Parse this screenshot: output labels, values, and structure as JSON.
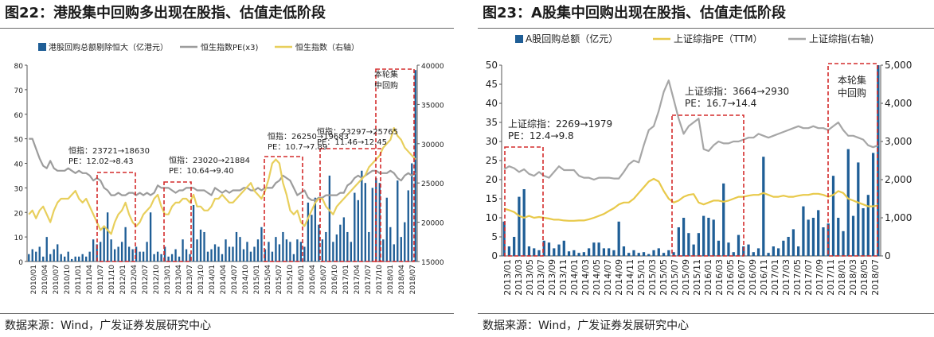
{
  "left": {
    "title": "图22：港股集中回购多出现在股指、估值走低阶段",
    "source": "数据来源：Wind，广发证券发展研究中心",
    "legend": [
      "港股回购总额剔除恒大（亿港元）",
      "恒生指数PE(x3)",
      "恒生指数（右轴）"
    ],
    "corner_note": [
      "本轮集",
      "中回购"
    ],
    "annotations": [
      {
        "line1": "恒指：23721→18630",
        "line2": "PE：12.02→8.43"
      },
      {
        "line1": "恒指：23020→21884",
        "line2": "PE：10.64→9.40"
      },
      {
        "line1": "恒指：26250→19683",
        "line2": "PE：10.7→7.89"
      },
      {
        "line1": "恒指：23297→25765",
        "line2": "PE：11.46→12.45"
      }
    ]
  },
  "right": {
    "title": "图23：A股集中回购出现在股指、估值走低阶段",
    "source": "数据来源：Wind，广发证券发展研究中心",
    "legend": [
      "A股回购总额（亿元）",
      "上证综指PE（TTM）",
      "上证综指(右轴)"
    ],
    "corner_note": [
      "本轮集",
      "中回购"
    ],
    "annotations": [
      {
        "line1": "上证综指：2269→1979",
        "line2": "PE：12.4→9.8"
      },
      {
        "line1": "上证综指：3664→2930",
        "line2": "PE：16.7→14.4"
      }
    ]
  },
  "chart_data": [
    {
      "type": "bar+line",
      "title": "图22：港股集中回购多出现在股指、估值走低阶段",
      "x_ticks": [
        "2010/01",
        "2010/04",
        "2010/07",
        "2010/10",
        "2011/01",
        "2011/04",
        "2011/07",
        "2011/10",
        "2012/01",
        "2012/04",
        "2012/07",
        "2012/10",
        "2013/01",
        "2013/04",
        "2013/07",
        "2013/10",
        "2014/01",
        "2014/04",
        "2014/07",
        "2014/10",
        "2015/01",
        "2015/04",
        "2015/07",
        "2015/10",
        "2016/01",
        "2016/04",
        "2016/07",
        "2016/10",
        "2017/01",
        "2017/04",
        "2017/07",
        "2017/10",
        "2018/01",
        "2018/04",
        "2018/07"
      ],
      "ylim_left": [
        0,
        80
      ],
      "yticks_left": [
        0,
        10,
        20,
        30,
        40,
        50,
        60,
        70,
        80
      ],
      "ylim_right": [
        15000,
        40000
      ],
      "yticks_right": [
        15000,
        20000,
        25000,
        30000,
        35000,
        40000
      ],
      "series": [
        {
          "name": "港股回购总额剔除恒大（亿港元）",
          "kind": "bar",
          "color": "#1f5e96",
          "axis": "left",
          "values": [
            3,
            5,
            4,
            6,
            2,
            10,
            3,
            5,
            7,
            3,
            2,
            4,
            1,
            2,
            2,
            3,
            2,
            4,
            9,
            7,
            8,
            14,
            20,
            9,
            5,
            6,
            8,
            14,
            6,
            5,
            6,
            4,
            4,
            8,
            20,
            3,
            4,
            3,
            6,
            2,
            3,
            5,
            2,
            9,
            5,
            3,
            23,
            9,
            13,
            12,
            4,
            5,
            7,
            6,
            3,
            9,
            6,
            6,
            12,
            10,
            5,
            8,
            4,
            6,
            9,
            14,
            5,
            8,
            4,
            10,
            7,
            12,
            9,
            8,
            3,
            9,
            8,
            6,
            24,
            19,
            26,
            15,
            9,
            12,
            35,
            8,
            11,
            15,
            18,
            12,
            8,
            28,
            25,
            37,
            32,
            12,
            30,
            34,
            32,
            9,
            26,
            14,
            7,
            33,
            10,
            16,
            29,
            40,
            78
          ]
        },
        {
          "name": "恒生指数PE(x3)",
          "kind": "line",
          "color": "#9c9c9c",
          "axis": "left",
          "values": [
            50,
            50,
            46,
            42,
            39,
            38,
            41,
            38,
            37,
            37,
            37,
            38,
            37,
            36,
            37,
            36,
            36,
            35,
            33,
            34,
            33,
            30,
            29,
            27,
            27,
            28,
            27,
            27,
            28,
            28,
            27,
            28,
            27,
            28,
            27,
            28,
            31,
            30,
            30,
            30,
            29,
            28,
            29,
            29,
            30,
            30,
            30,
            29,
            29,
            29,
            28,
            27,
            30,
            29,
            28,
            29,
            28,
            29,
            29,
            29,
            30,
            30,
            29,
            29,
            30,
            29,
            30,
            30,
            30,
            32,
            33,
            35,
            34,
            33,
            30,
            27,
            28,
            29,
            26,
            25,
            25,
            26,
            26,
            27,
            27,
            27,
            27,
            28,
            28,
            31,
            32,
            34,
            35,
            34,
            35,
            36,
            37,
            37,
            36,
            36,
            36,
            37,
            36,
            34,
            33,
            35,
            36,
            35,
            36
          ]
        },
        {
          "name": "恒生指数（右轴）",
          "kind": "line",
          "color": "#e8cf5c",
          "axis": "right",
          "values": [
            21000,
            21500,
            20500,
            21500,
            22000,
            21000,
            20000,
            21500,
            22500,
            23000,
            23000,
            23000,
            23500,
            24000,
            23000,
            22500,
            23000,
            22000,
            21000,
            20000,
            19000,
            19500,
            19000,
            18500,
            20000,
            21000,
            21500,
            22500,
            21000,
            20000,
            19500,
            20000,
            21000,
            21500,
            22000,
            23000,
            23500,
            22000,
            21000,
            21000,
            22000,
            22500,
            22500,
            23000,
            23000,
            22500,
            23500,
            22000,
            22000,
            21500,
            21500,
            22000,
            23000,
            23000,
            23500,
            23000,
            22500,
            22500,
            23000,
            23500,
            24000,
            24500,
            25000,
            24000,
            23500,
            23000,
            24000,
            25500,
            27500,
            28000,
            27500,
            25000,
            23500,
            21500,
            21000,
            21500,
            20000,
            19500,
            20500,
            21500,
            22500,
            23000,
            23000,
            22000,
            21500,
            21000,
            22000,
            22500,
            23000,
            23500,
            24000,
            24500,
            25000,
            25500,
            26000,
            27000,
            27500,
            28000,
            28500,
            29500,
            30000,
            30500,
            32000,
            31000,
            30500,
            29500,
            29000,
            28500,
            28000
          ]
        }
      ],
      "highlight_boxes": [
        [
          "2011/07",
          "2012/04"
        ],
        [
          "2013/01",
          "2013/07"
        ],
        [
          "2015/04",
          "2016/01"
        ],
        [
          "2016/07",
          "2017/10"
        ],
        [
          "2017/10",
          "2018/07"
        ]
      ]
    },
    {
      "type": "bar+line",
      "title": "图23：A股集中回购出现在股指、估值走低阶段",
      "x_ticks": [
        "2013/01",
        "2013/03",
        "2013/05",
        "2013/07",
        "2013/09",
        "2013/11",
        "2014/01",
        "2014/03",
        "2014/05",
        "2014/07",
        "2014/09",
        "2014/11",
        "2015/01",
        "2015/03",
        "2015/05",
        "2015/07",
        "2015/09",
        "2015/11",
        "2016/01",
        "2016/03",
        "2016/05",
        "2016/07",
        "2016/09",
        "2016/11",
        "2017/01",
        "2017/03",
        "2017/05",
        "2017/07",
        "2017/09",
        "2017/11",
        "2018/01",
        "2018/03",
        "2018/05",
        "2018/07"
      ],
      "ylim_left": [
        0,
        50
      ],
      "yticks_left": [
        0,
        5,
        10,
        15,
        20,
        25,
        30,
        35,
        40,
        45,
        50
      ],
      "ylim_right": [
        0,
        5000
      ],
      "yticks_right": [
        0,
        1000,
        2000,
        3000,
        4000,
        5000
      ],
      "series": [
        {
          "name": "A股回购总额（亿元）",
          "kind": "bar",
          "color": "#1f5e96",
          "axis": "left",
          "values": [
            9,
            2.5,
            5,
            15.5,
            17.5,
            2.5,
            2,
            1.5,
            4,
            3.5,
            2,
            3,
            4,
            1.2,
            1.5,
            0.8,
            1,
            2,
            3.5,
            3.5,
            2,
            2,
            1.5,
            9,
            2.5,
            0.8,
            1.5,
            0.8,
            1,
            0.5,
            1.5,
            2,
            0.8,
            1.5,
            1,
            7.5,
            10,
            6,
            3,
            6,
            10.5,
            10,
            9.5,
            4,
            19,
            3.5,
            1,
            5.5,
            2.5,
            3,
            1,
            2,
            26,
            0.8,
            2.5,
            2,
            4,
            5,
            7,
            2.5,
            13,
            9.5,
            10,
            12,
            7.5,
            8.5,
            21,
            10,
            6.5,
            28,
            10.5,
            24.5,
            12.5,
            16,
            27,
            50
          ]
        },
        {
          "name": "上证综指PE（TTM）",
          "kind": "line",
          "color": "#e8c94a",
          "axis": "left",
          "values": [
            12.4,
            12,
            11.5,
            10.5,
            10,
            10.5,
            10,
            10.2,
            10,
            9.8,
            9.5,
            9.5,
            9.3,
            9.2,
            9.2,
            9.3,
            9.3,
            9.6,
            10,
            10.5,
            11,
            11.8,
            12.5,
            13.5,
            14,
            14,
            15,
            16.5,
            18,
            19.5,
            20.2,
            19.5,
            17,
            15,
            14,
            14.5,
            15.5,
            16,
            16.2,
            14,
            13.5,
            14,
            14.5,
            14.5,
            14.2,
            14.5,
            15,
            15.5,
            15.5,
            15.8,
            16,
            16,
            16.5,
            16,
            15.5,
            15.5,
            15.8,
            15.5,
            15.5,
            15.8,
            16,
            16,
            16.3,
            16.3,
            16,
            15.5,
            16,
            17,
            16.5,
            15,
            14.5,
            14,
            13.5,
            13,
            13,
            13.2
          ]
        },
        {
          "name": "上证综指(右轴)",
          "kind": "line",
          "color": "#a6a6a6",
          "axis": "right",
          "values": [
            2270,
            2350,
            2300,
            2200,
            2270,
            2150,
            2100,
            2200,
            2100,
            2050,
            2200,
            2350,
            2250,
            2250,
            2250,
            2100,
            2050,
            2050,
            2000,
            2050,
            2050,
            2050,
            2030,
            2030,
            2200,
            2400,
            2500,
            2450,
            2900,
            3300,
            3400,
            3800,
            4300,
            4600,
            4100,
            3600,
            3200,
            3400,
            3500,
            3600,
            2800,
            2750,
            2900,
            3000,
            2950,
            2950,
            3000,
            3000,
            3050,
            3100,
            3100,
            3200,
            3150,
            3100,
            3150,
            3200,
            3250,
            3300,
            3350,
            3400,
            3350,
            3350,
            3400,
            3350,
            3350,
            3300,
            3400,
            3500,
            3300,
            3150,
            3150,
            3100,
            3050,
            2900,
            2850,
            2900
          ]
        }
      ],
      "highlight_boxes": [
        [
          "2013/01",
          "2013/07"
        ],
        [
          "2015/07",
          "2016/07"
        ],
        [
          "2017/11",
          "2018/07"
        ]
      ]
    }
  ]
}
